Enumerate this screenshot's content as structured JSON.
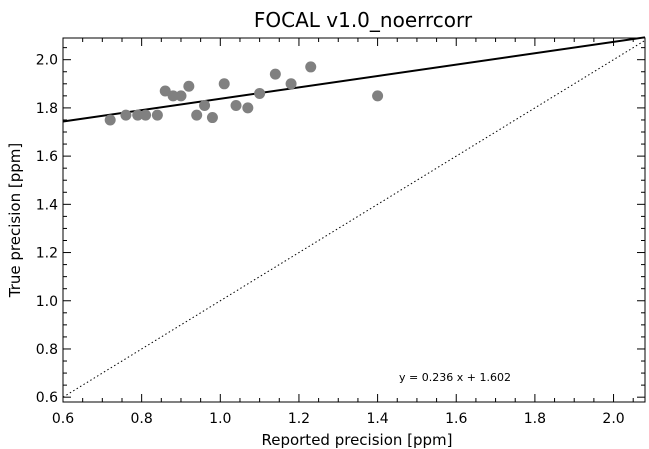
{
  "chart_data": {
    "type": "scatter",
    "title": "FOCAL v1.0_noerrcorr",
    "xlabel": "Reported precision [ppm]",
    "ylabel": "True precision [ppm]",
    "xlim": [
      0.6,
      2.08
    ],
    "ylim": [
      0.58,
      2.09
    ],
    "xticks": [
      0.6,
      0.8,
      1.0,
      1.2,
      1.4,
      1.6,
      1.8,
      2.0
    ],
    "xtick_labels": [
      "0.6",
      "0.8",
      "1.0",
      "1.2",
      "1.4",
      "1.6",
      "1.8",
      "2.0"
    ],
    "yticks": [
      0.6,
      0.8,
      1.0,
      1.2,
      1.4,
      1.6,
      1.8,
      2.0
    ],
    "ytick_labels": [
      "0.6",
      "0.8",
      "1.0",
      "1.2",
      "1.4",
      "1.6",
      "1.8",
      "2.0"
    ],
    "grid": false,
    "points": {
      "color": "#808080",
      "x": [
        0.72,
        0.76,
        0.79,
        0.81,
        0.84,
        0.86,
        0.88,
        0.9,
        0.92,
        0.94,
        0.96,
        0.98,
        1.01,
        1.04,
        1.07,
        1.1,
        1.14,
        1.18,
        1.23,
        1.4
      ],
      "y": [
        1.75,
        1.77,
        1.77,
        1.77,
        1.77,
        1.87,
        1.85,
        1.85,
        1.89,
        1.77,
        1.81,
        1.76,
        1.9,
        1.81,
        1.8,
        1.86,
        1.94,
        1.9,
        1.97,
        1.85
      ]
    },
    "fit_line": {
      "slope": 0.236,
      "intercept": 1.602,
      "style": "solid",
      "color": "#000000"
    },
    "reference_line": {
      "slope": 1,
      "intercept": 0,
      "style": "dotted",
      "color": "#000000"
    },
    "annotation": "y = 0.236 x + 1.602"
  }
}
